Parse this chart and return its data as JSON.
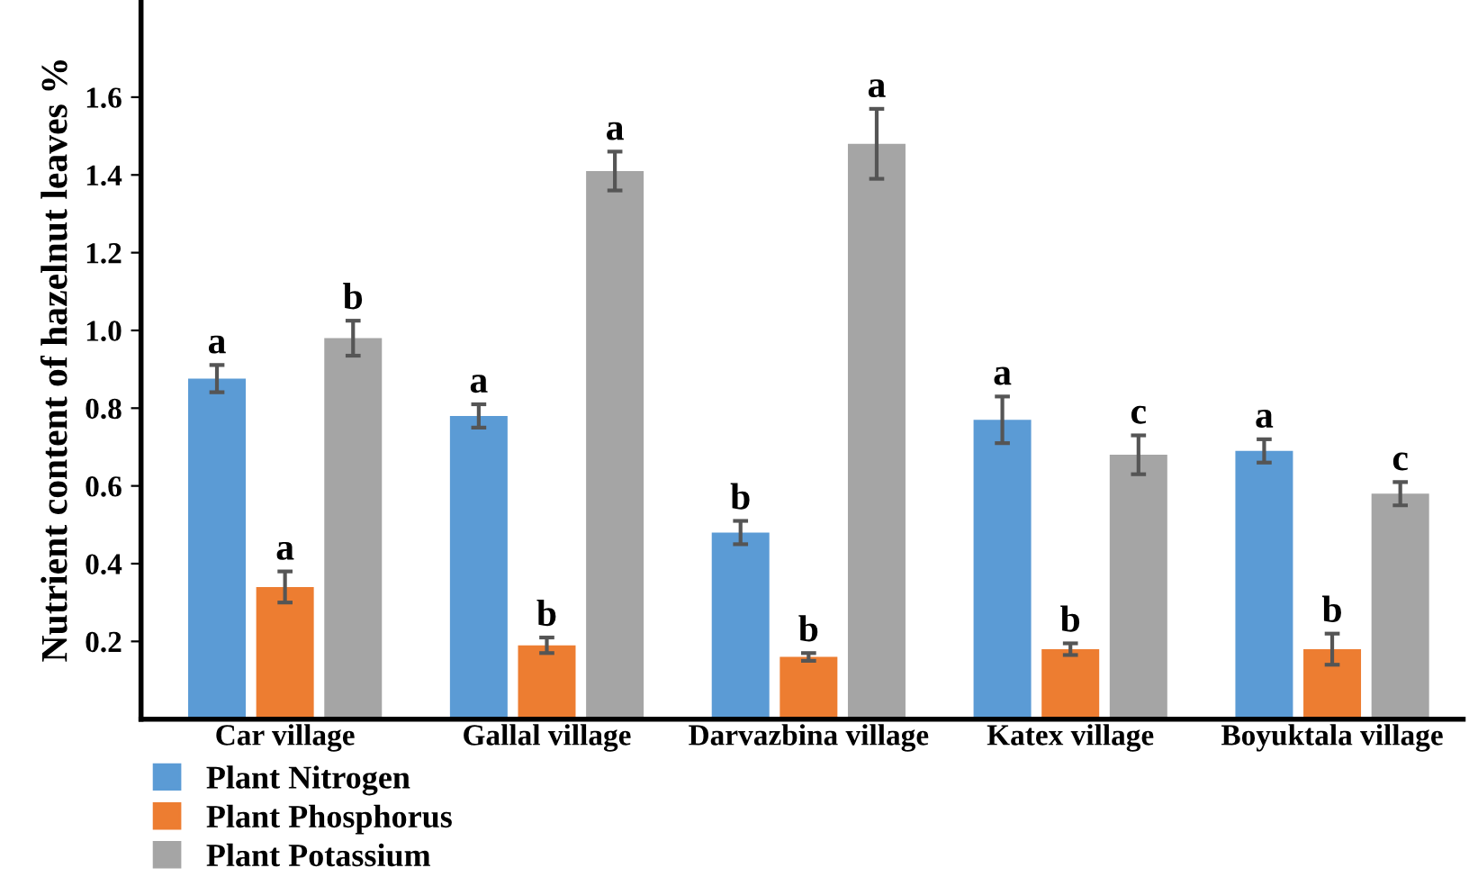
{
  "chart_data": {
    "type": "bar",
    "ylabel": "Nutrient content of hazelnut leaves %",
    "categories": [
      "Car village",
      "Gallal village",
      "Darvazbina village",
      "Katex village",
      "Boyuktala village"
    ],
    "series": [
      {
        "name": "Plant Nitrogen",
        "color": "#5b9bd5",
        "values": [
          0.876,
          0.78,
          0.48,
          0.77,
          0.69
        ],
        "errors": [
          0.035,
          0.03,
          0.03,
          0.06,
          0.03
        ],
        "value_labels": [
          "a",
          "a",
          "b",
          "a",
          "a"
        ]
      },
      {
        "name": "Plant Phosphorus",
        "color": "#ed7d31",
        "values": [
          0.34,
          0.19,
          0.16,
          0.18,
          0.18
        ],
        "errors": [
          0.04,
          0.02,
          0.01,
          0.015,
          0.04
        ],
        "value_labels": [
          "a",
          "b",
          "b",
          "b",
          "b"
        ]
      },
      {
        "name": "Plant Potassium",
        "color": "#a5a5a5",
        "values": [
          0.98,
          1.41,
          1.48,
          0.68,
          0.58
        ],
        "errors": [
          0.045,
          0.05,
          0.09,
          0.05,
          0.03
        ],
        "value_labels": [
          "b",
          "a",
          "a",
          "c",
          "c"
        ]
      }
    ],
    "ylim": [
      0,
      1.85
    ],
    "yticks": [
      0.2,
      0.4,
      0.6,
      0.8,
      {
        "value": 1.0,
        "label": "1.0"
      },
      1.2,
      1.4,
      1.6
    ],
    "grid": false,
    "legend": "bottom left"
  }
}
